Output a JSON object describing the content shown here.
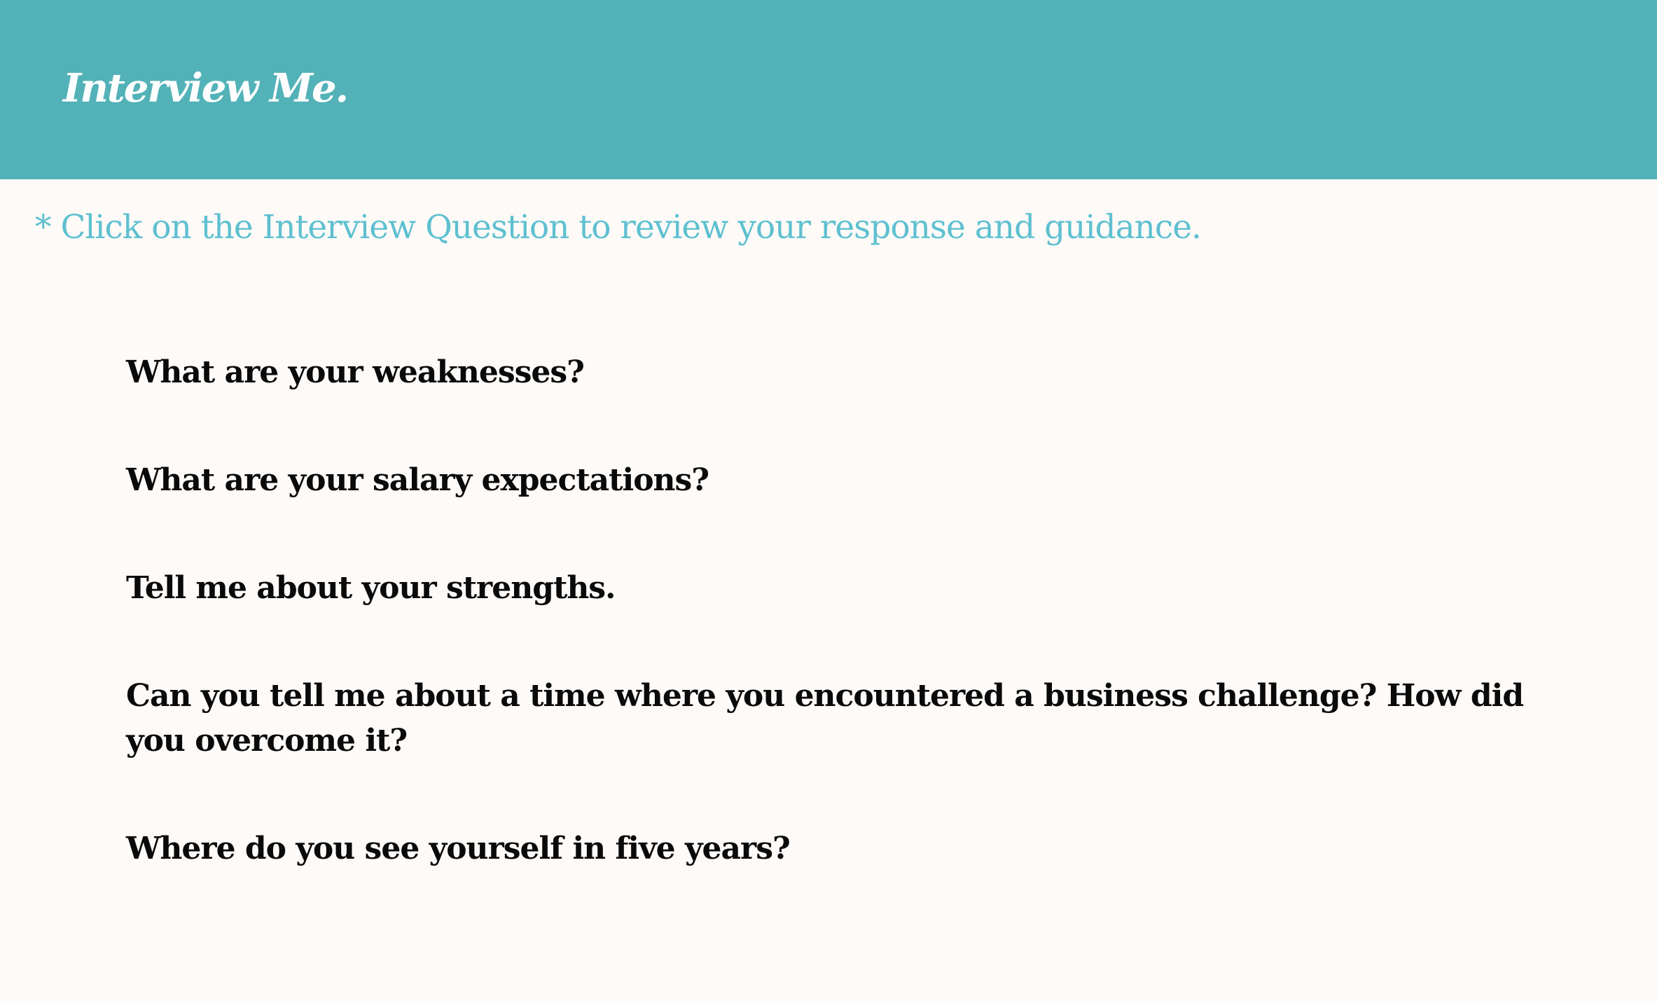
{
  "header": {
    "brand": "Interview Me.",
    "background_color": "#52b2b8"
  },
  "instruction": {
    "text": "* Click on the Interview Question to review your response and guidance.",
    "color": "#5ec0d0"
  },
  "questions": [
    {
      "text": "What are your weaknesses?"
    },
    {
      "text": "What are your salary expectations?"
    },
    {
      "text": "Tell me about your strengths."
    },
    {
      "text": "Can you tell me about a time where you encountered a business challenge? How did you overcome it?"
    },
    {
      "text": "Where do you see yourself in five years?"
    }
  ]
}
